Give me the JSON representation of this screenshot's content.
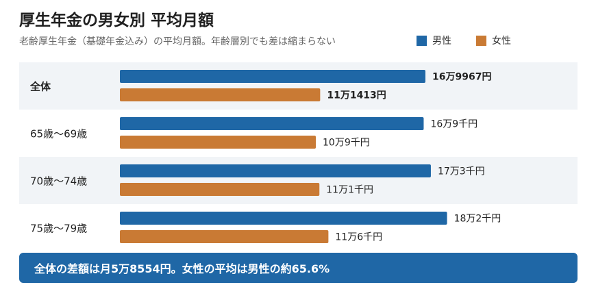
{
  "title": "厚生年金の男女別 平均月額",
  "subtitle": "老齢厚生年金（基礎年金込み）の平均月額。年齢層別でも差は縮まらない",
  "colors": {
    "male": "#1f67a6",
    "female": "#c97a34",
    "row_shade": "#f1f4f7",
    "callout_bg": "#1f67a6"
  },
  "callout": "全体の差額は月5万8554円。女性の平均は男性の約65.6%",
  "chart_data": {
    "type": "bar",
    "orientation": "horizontal",
    "unit": "円",
    "legend_position": "top-right",
    "categories": [
      "全体",
      "65歳〜69歳",
      "70歳〜74歳",
      "75歳〜79歳"
    ],
    "series": [
      {
        "name": "男性",
        "values": [
          169967,
          169000,
          173000,
          182000
        ],
        "labels": [
          "16万9967円",
          "16万9千円",
          "17万3千円",
          "18万2千円"
        ]
      },
      {
        "name": "女性",
        "values": [
          111413,
          109000,
          111000,
          116000
        ],
        "labels": [
          "11万1413円",
          "10万9千円",
          "11万1千円",
          "11万6千円"
        ]
      }
    ]
  }
}
